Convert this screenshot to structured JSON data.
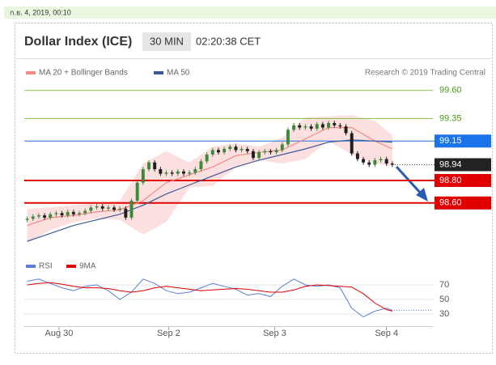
{
  "header": {
    "timestamp": "ก.ย. 4, 2019, 00:10",
    "title": "Dollar Index (ICE)",
    "interval": "30 MIN",
    "time": "02:20:38 CET",
    "attribution": "Research © 2019 Trading Central"
  },
  "chart_data": [
    {
      "type": "candlestick",
      "x": [
        0,
        1,
        2,
        3,
        4,
        5,
        6,
        7,
        8,
        9,
        10,
        11,
        12,
        13,
        14,
        15,
        16,
        17,
        18,
        19,
        20,
        21,
        22,
        23,
        24,
        25,
        26,
        27,
        28,
        29,
        30,
        31,
        32,
        33,
        34,
        35,
        36,
        37,
        38,
        39,
        40,
        41,
        42,
        43,
        44,
        45,
        46,
        47,
        48,
        49,
        50,
        51,
        52,
        53,
        54,
        55,
        56,
        57,
        58,
        59,
        60,
        61,
        62,
        63
      ],
      "open": [
        98.45,
        98.46,
        98.48,
        98.49,
        98.47,
        98.5,
        98.51,
        98.49,
        98.52,
        98.5,
        98.51,
        98.53,
        98.56,
        98.57,
        98.55,
        98.56,
        98.54,
        98.55,
        98.47,
        98.62,
        98.78,
        98.9,
        98.96,
        98.9,
        98.86,
        98.87,
        98.86,
        98.88,
        98.86,
        98.87,
        98.9,
        98.97,
        99.03,
        99.07,
        99.05,
        99.08,
        99.1,
        99.07,
        99.08,
        99.06,
        99.0,
        99.05,
        99.06,
        99.05,
        99.07,
        99.12,
        99.25,
        99.29,
        99.27,
        99.28,
        99.26,
        99.3,
        99.27,
        99.31,
        99.29,
        99.28,
        99.22,
        99.04,
        98.99,
        98.96,
        98.94,
        98.98,
        98.99,
        98.95
      ],
      "high": [
        98.48,
        98.5,
        98.51,
        98.51,
        98.52,
        98.53,
        98.53,
        98.54,
        98.54,
        98.53,
        98.55,
        98.58,
        98.59,
        98.59,
        98.58,
        98.58,
        98.57,
        98.57,
        98.64,
        98.8,
        98.92,
        98.98,
        98.98,
        98.92,
        98.89,
        98.89,
        98.9,
        98.9,
        98.89,
        98.92,
        98.99,
        99.05,
        99.09,
        99.09,
        99.1,
        99.12,
        99.12,
        99.1,
        99.1,
        99.08,
        99.07,
        99.08,
        99.08,
        99.09,
        99.14,
        99.27,
        99.31,
        99.31,
        99.3,
        99.3,
        99.32,
        99.32,
        99.33,
        99.33,
        99.31,
        99.3,
        99.24,
        99.06,
        99.01,
        98.98,
        99.0,
        99.01,
        99.01,
        98.97
      ],
      "low": [
        98.43,
        98.44,
        98.46,
        98.45,
        98.45,
        98.48,
        98.47,
        98.47,
        98.48,
        98.48,
        98.49,
        98.51,
        98.54,
        98.53,
        98.53,
        98.52,
        98.52,
        98.45,
        98.45,
        98.6,
        98.76,
        98.88,
        98.88,
        98.84,
        98.84,
        98.84,
        98.84,
        98.84,
        98.84,
        98.85,
        98.88,
        98.95,
        99.01,
        99.03,
        99.03,
        99.06,
        99.05,
        99.05,
        99.04,
        98.98,
        98.98,
        99.03,
        99.03,
        99.03,
        99.05,
        99.1,
        99.23,
        99.25,
        99.25,
        99.24,
        99.24,
        99.25,
        99.25,
        99.27,
        99.26,
        99.2,
        99.02,
        98.97,
        98.94,
        98.92,
        98.92,
        98.96,
        98.93,
        98.92
      ],
      "close": [
        98.46,
        98.48,
        98.49,
        98.47,
        98.5,
        98.51,
        98.49,
        98.52,
        98.5,
        98.51,
        98.53,
        98.56,
        98.57,
        98.55,
        98.56,
        98.54,
        98.55,
        98.47,
        98.62,
        98.78,
        98.9,
        98.96,
        98.9,
        98.86,
        98.87,
        98.86,
        98.88,
        98.86,
        98.87,
        98.9,
        98.97,
        99.03,
        99.07,
        99.05,
        99.08,
        99.1,
        99.07,
        99.08,
        99.06,
        99.0,
        99.05,
        99.06,
        99.05,
        99.07,
        99.12,
        99.25,
        99.29,
        99.27,
        99.28,
        99.26,
        99.3,
        99.27,
        99.31,
        99.29,
        99.28,
        99.22,
        99.04,
        98.99,
        98.96,
        98.94,
        98.98,
        98.99,
        98.95,
        98.94
      ],
      "up_color": "#3b8a3b",
      "down_color": "#1e1e1e",
      "series": [
        {
          "name": "MA 20 + Bollinger Bands",
          "color": "#f28b82",
          "band_color": "#fbd3d3",
          "x": [
            0,
            4,
            8,
            12,
            16,
            20,
            24,
            28,
            32,
            36,
            40,
            44,
            48,
            52,
            56,
            60,
            63
          ],
          "values": [
            98.4,
            98.47,
            98.49,
            98.52,
            98.54,
            98.62,
            98.78,
            98.85,
            98.92,
            99.02,
            99.05,
            99.07,
            99.17,
            99.27,
            99.27,
            99.15,
            99.08
          ],
          "upper": [
            98.55,
            98.56,
            98.58,
            98.6,
            98.62,
            98.95,
            99.06,
            98.96,
            99.1,
            99.13,
            99.1,
            99.18,
            99.36,
            99.37,
            99.38,
            99.33,
            99.2
          ],
          "lower": [
            98.24,
            98.36,
            98.43,
            98.46,
            98.45,
            98.32,
            98.43,
            98.74,
            98.75,
            98.92,
            98.98,
            98.95,
            98.99,
            99.15,
            99.03,
            98.95,
            98.93
          ]
        },
        {
          "name": "MA 50",
          "color": "#3c5a99",
          "x": [
            0,
            4,
            8,
            12,
            16,
            20,
            24,
            28,
            32,
            36,
            40,
            44,
            48,
            52,
            56,
            60,
            63
          ],
          "values": [
            98.26,
            98.33,
            98.4,
            98.45,
            98.5,
            98.58,
            98.68,
            98.76,
            98.84,
            98.92,
            98.98,
            99.03,
            99.08,
            99.14,
            99.16,
            99.15,
            99.14
          ]
        }
      ],
      "levels": [
        {
          "value": 99.6,
          "label": "99.60",
          "color": "#8bc34a",
          "weight": "thin",
          "tag": false
        },
        {
          "value": 99.35,
          "label": "99.35",
          "color": "#8bc34a",
          "weight": "thin",
          "tag": false
        },
        {
          "value": 99.15,
          "label": "99.15",
          "color": "#1a73e8",
          "weight": "thin",
          "tag": true
        },
        {
          "value": 98.8,
          "label": "98.80",
          "color": "#e00000",
          "weight": "thick",
          "tag": true
        },
        {
          "value": 98.6,
          "label": "98.60",
          "color": "#e00000",
          "weight": "thick",
          "tag": true
        }
      ],
      "last_price": {
        "value": 98.94,
        "label": "98.94",
        "color": "#222222"
      },
      "xlim": [
        -0.5,
        70
      ],
      "ylim": [
        98.16,
        99.72
      ],
      "xticks": [
        {
          "value": 5.5,
          "label": "Aug 30"
        },
        {
          "value": 24.4,
          "label": "Sep 2"
        },
        {
          "value": 42.7,
          "label": "Sep 3"
        },
        {
          "value": 62,
          "label": "Sep 4"
        }
      ]
    },
    {
      "type": "line",
      "xlim": [
        -0.5,
        70
      ],
      "ylim": [
        20,
        80
      ],
      "yticks": [
        30,
        50,
        70
      ],
      "series": [
        {
          "name": "RSI",
          "color": "#5b7fd6",
          "x": [
            0,
            2,
            4,
            6,
            8,
            10,
            12,
            14,
            16,
            18,
            20,
            22,
            24,
            26,
            28,
            30,
            32,
            34,
            36,
            38,
            40,
            42,
            44,
            46,
            48,
            50,
            52,
            54,
            56,
            58,
            60,
            62,
            63
          ],
          "values": [
            75,
            78,
            72,
            66,
            62,
            68,
            70,
            62,
            50,
            60,
            78,
            72,
            62,
            58,
            60,
            66,
            72,
            68,
            64,
            56,
            58,
            54,
            68,
            78,
            70,
            68,
            70,
            66,
            38,
            26,
            34,
            38,
            35
          ]
        },
        {
          "name": "9MA",
          "color": "#e00000",
          "x": [
            0,
            2,
            4,
            6,
            8,
            10,
            12,
            14,
            16,
            18,
            20,
            22,
            24,
            26,
            28,
            30,
            32,
            34,
            36,
            38,
            40,
            42,
            44,
            46,
            48,
            50,
            52,
            54,
            56,
            58,
            60,
            62,
            63
          ],
          "values": [
            70,
            72,
            73,
            71,
            68,
            66,
            66,
            65,
            62,
            60,
            62,
            66,
            68,
            66,
            64,
            62,
            63,
            64,
            65,
            64,
            62,
            60,
            60,
            63,
            68,
            70,
            69,
            68,
            67,
            58,
            45,
            36,
            34
          ]
        }
      ]
    }
  ]
}
